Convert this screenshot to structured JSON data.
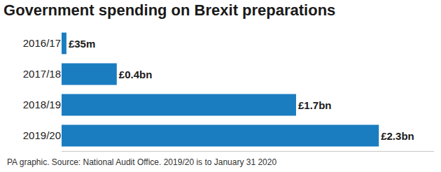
{
  "chart_data": {
    "type": "bar",
    "title": "Government spending on Brexit preparations",
    "footnote": "PA graphic. Source: National Audit Office. 2019/20 is to January 31 2020",
    "categories": [
      "2016/17",
      "2017/18",
      "2018/19",
      "2019/20"
    ],
    "values": [
      0.035,
      0.4,
      1.7,
      2.3
    ],
    "value_labels": [
      "£35m",
      "£0.4bn",
      "£1.7bn",
      "£2.3bn"
    ],
    "color": "#1a7dc0",
    "orientation": "horizontal",
    "data_labels": true,
    "tick_labels": "y",
    "xlim": [
      0,
      2.7
    ],
    "grid": false
  }
}
